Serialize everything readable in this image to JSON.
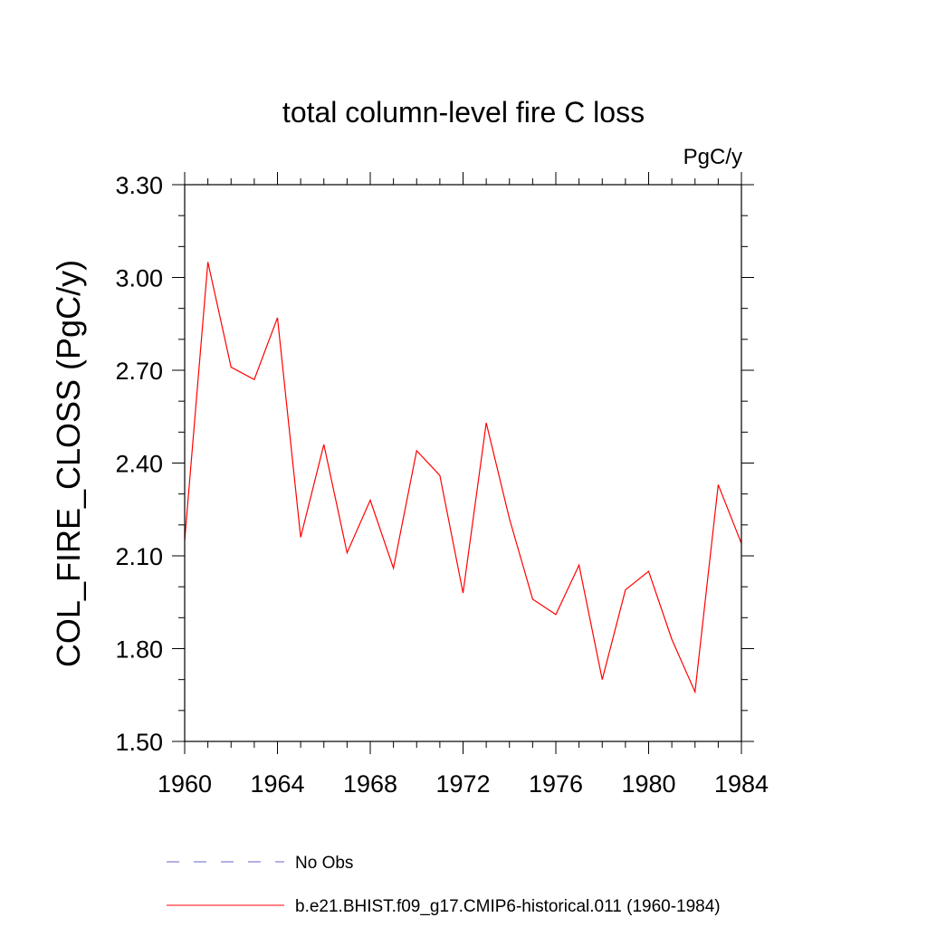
{
  "chart_data": {
    "type": "line",
    "title": "total column-level fire C loss",
    "units_label": "PgC/y",
    "xlabel": "",
    "ylabel": "COL_FIRE_CLOSS  (PgC/y)",
    "xlim": [
      1960,
      1984
    ],
    "ylim": [
      1.5,
      3.3
    ],
    "x_ticks": [
      1960,
      1964,
      1968,
      1972,
      1976,
      1980,
      1984
    ],
    "x_tick_labels": [
      "1960",
      "1964",
      "1968",
      "1972",
      "1976",
      "1980",
      "1984"
    ],
    "y_ticks": [
      1.5,
      1.8,
      2.1,
      2.4,
      2.7,
      3.0,
      3.3
    ],
    "y_tick_labels": [
      "1.50",
      "1.80",
      "2.10",
      "2.40",
      "2.70",
      "3.00",
      "3.30"
    ],
    "grid": false,
    "legend_position": "bottom",
    "x": [
      1960,
      1961,
      1962,
      1963,
      1964,
      1965,
      1966,
      1967,
      1968,
      1969,
      1970,
      1971,
      1972,
      1973,
      1974,
      1975,
      1976,
      1977,
      1978,
      1979,
      1980,
      1981,
      1982,
      1983,
      1984
    ],
    "series": [
      {
        "name": "b.e21.BHIST.f09_g17.CMIP6-historical.011 (1960-1984)",
        "color": "#ff0000",
        "style": "solid",
        "values": [
          2.15,
          3.05,
          2.71,
          2.67,
          2.87,
          2.16,
          2.46,
          2.11,
          2.28,
          2.06,
          2.44,
          2.36,
          1.98,
          2.53,
          2.22,
          1.96,
          1.91,
          2.07,
          1.7,
          1.99,
          2.05,
          1.83,
          1.66,
          2.33,
          2.14
        ]
      }
    ],
    "legend": [
      {
        "label": "No Obs",
        "color": "#6666cc",
        "style": "dashed"
      },
      {
        "label": "b.e21.BHIST.f09_g17.CMIP6-historical.011 (1960-1984)",
        "color": "#ff0000",
        "style": "solid"
      }
    ]
  }
}
